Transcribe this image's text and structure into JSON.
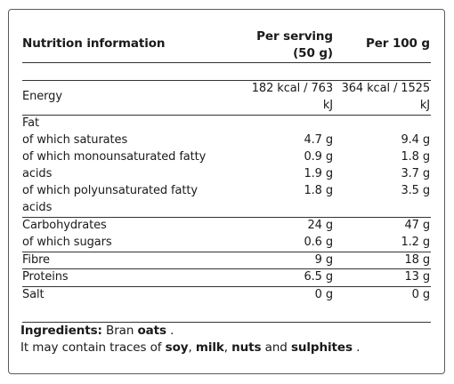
{
  "header": {
    "title": "Nutrition information",
    "per_serving_line1": "Per serving",
    "per_serving_line2": "(50 g)",
    "per_100g": "Per 100 g"
  },
  "energy": {
    "label": "Energy",
    "serving_line1": "182 kcal / 763",
    "serving_line2": "kJ",
    "per100_line1": "364 kcal / 1525",
    "per100_line2": "kJ"
  },
  "fat": {
    "label": "Fat",
    "saturates_label": "of which saturates",
    "saturates_serving": "4.7 g",
    "saturates_100g": "9.4 g",
    "mono_label_line1": "of which monounsaturated fatty",
    "mono_label_line2": "acids",
    "mono_serving": "0.9 g",
    "mono_100g": "1.8 g",
    "mono_serving_2": "1.9 g",
    "mono_100g_2": "3.7 g",
    "poly_label_line1": "of which polyunsaturated fatty",
    "poly_label_line2": "acids",
    "poly_serving": "1.8 g",
    "poly_100g": "3.5 g"
  },
  "carbohydrates": {
    "label": "Carbohydrates",
    "serving": "24 g",
    "per100": "47 g",
    "sugars_label": "of which sugars",
    "sugars_serving": "0.6 g",
    "sugars_100g": "1.2 g"
  },
  "fibre": {
    "label": "Fibre",
    "serving": "9 g",
    "per100": "18 g"
  },
  "proteins": {
    "label": "Proteins",
    "serving": "6.5 g",
    "per100": "13 g"
  },
  "salt": {
    "label": "Salt",
    "serving": "0 g",
    "per100": "0 g"
  },
  "ingredients": {
    "heading": "Ingredients:",
    "text_before": " Bran ",
    "highlight": "oats",
    "text_after": " .",
    "traces_prefix": "It may contain traces of ",
    "allergen_1": "soy",
    "sep_1": ", ",
    "allergen_2": "milk",
    "sep_2": ", ",
    "allergen_3": "nuts",
    "sep_3": " and ",
    "allergen_4": "sulphites",
    "traces_suffix": " ."
  }
}
